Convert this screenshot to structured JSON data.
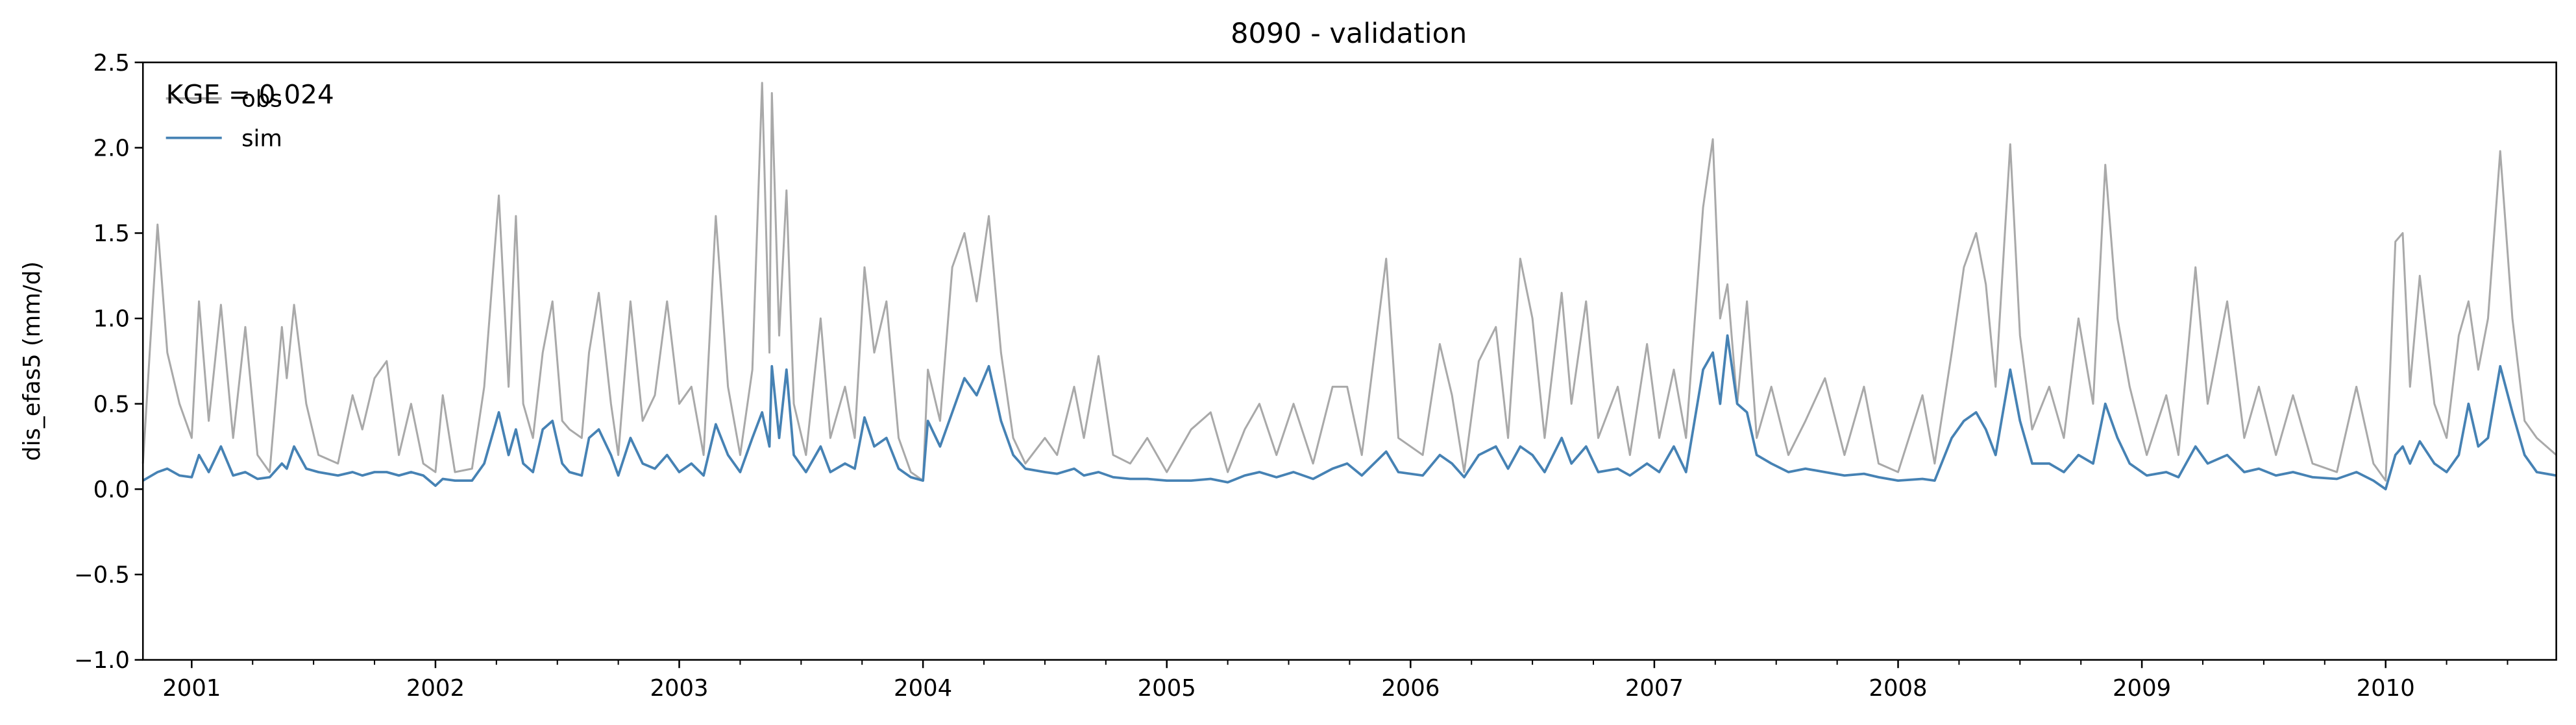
{
  "chart_data": {
    "type": "line",
    "title": "8090 - validation",
    "y_label": "dis_efas5 (mm/d)",
    "annotation": "KGE = 0.024",
    "legend": "upper left",
    "grid": false,
    "xlim": [
      2000.8,
      2010.7
    ],
    "xticks": [
      2001,
      2002,
      2003,
      2004,
      2005,
      2006,
      2007,
      2008,
      2009,
      2010
    ],
    "ylim": [
      -1.0,
      2.5
    ],
    "yticks": [
      {
        "value": -1.0,
        "label": "−1.0"
      },
      {
        "value": -0.5,
        "label": "−0.5"
      },
      {
        "value": 0.0,
        "label": "0.0"
      },
      {
        "value": 0.5,
        "label": "0.5"
      },
      {
        "value": 1.0,
        "label": "1.0"
      },
      {
        "value": 1.5,
        "label": "1.5"
      },
      {
        "value": 2.0,
        "label": "2.0"
      },
      {
        "value": 2.5,
        "label": "2.5"
      }
    ],
    "x": [
      2000.8,
      2000.86,
      2000.9,
      2000.95,
      2001.0,
      2001.03,
      2001.07,
      2001.12,
      2001.17,
      2001.22,
      2001.27,
      2001.32,
      2001.37,
      2001.39,
      2001.42,
      2001.47,
      2001.52,
      2001.6,
      2001.66,
      2001.7,
      2001.75,
      2001.8,
      2001.85,
      2001.9,
      2001.95,
      2002.0,
      2002.03,
      2002.08,
      2002.15,
      2002.2,
      2002.26,
      2002.3,
      2002.33,
      2002.36,
      2002.4,
      2002.44,
      2002.48,
      2002.52,
      2002.55,
      2002.6,
      2002.63,
      2002.67,
      2002.72,
      2002.75,
      2002.8,
      2002.85,
      2002.9,
      2002.95,
      2003.0,
      2003.05,
      2003.1,
      2003.15,
      2003.2,
      2003.25,
      2003.3,
      2003.34,
      2003.37,
      2003.38,
      2003.41,
      2003.44,
      2003.47,
      2003.52,
      2003.58,
      2003.62,
      2003.68,
      2003.72,
      2003.76,
      2003.8,
      2003.85,
      2003.9,
      2003.95,
      2004.0,
      2004.02,
      2004.07,
      2004.12,
      2004.17,
      2004.22,
      2004.27,
      2004.32,
      2004.37,
      2004.42,
      2004.5,
      2004.55,
      2004.62,
      2004.66,
      2004.72,
      2004.78,
      2004.85,
      2004.92,
      2005.0,
      2005.1,
      2005.18,
      2005.25,
      2005.32,
      2005.38,
      2005.45,
      2005.52,
      2005.6,
      2005.68,
      2005.74,
      2005.8,
      2005.9,
      2005.95,
      2006.05,
      2006.12,
      2006.17,
      2006.22,
      2006.28,
      2006.35,
      2006.4,
      2006.45,
      2006.5,
      2006.55,
      2006.62,
      2006.66,
      2006.72,
      2006.77,
      2006.85,
      2006.9,
      2006.97,
      2007.02,
      2007.08,
      2007.13,
      2007.2,
      2007.24,
      2007.27,
      2007.3,
      2007.34,
      2007.38,
      2007.42,
      2007.48,
      2007.55,
      2007.62,
      2007.7,
      2007.78,
      2007.86,
      2007.92,
      2008.0,
      2008.1,
      2008.15,
      2008.22,
      2008.27,
      2008.32,
      2008.36,
      2008.4,
      2008.46,
      2008.5,
      2008.55,
      2008.62,
      2008.68,
      2008.74,
      2008.8,
      2008.85,
      2008.9,
      2008.95,
      2009.02,
      2009.1,
      2009.15,
      2009.22,
      2009.27,
      2009.35,
      2009.42,
      2009.48,
      2009.55,
      2009.62,
      2009.7,
      2009.8,
      2009.88,
      2009.95,
      2010.0,
      2010.04,
      2010.07,
      2010.1,
      2010.14,
      2010.2,
      2010.25,
      2010.3,
      2010.34,
      2010.38,
      2010.42,
      2010.47,
      2010.52,
      2010.57,
      2010.62,
      2010.7
    ],
    "series": [
      {
        "name": "obs",
        "color": "#a9a9a9",
        "values": [
          0.15,
          1.55,
          0.8,
          0.5,
          0.3,
          1.1,
          0.4,
          1.08,
          0.3,
          0.95,
          0.2,
          0.1,
          0.95,
          0.65,
          1.08,
          0.5,
          0.2,
          0.15,
          0.55,
          0.35,
          0.65,
          0.75,
          0.2,
          0.5,
          0.15,
          0.1,
          0.55,
          0.1,
          0.12,
          0.6,
          1.72,
          0.6,
          1.6,
          0.5,
          0.3,
          0.8,
          1.1,
          0.4,
          0.35,
          0.3,
          0.8,
          1.15,
          0.5,
          0.2,
          1.1,
          0.4,
          0.55,
          1.1,
          0.5,
          0.6,
          0.2,
          1.6,
          0.6,
          0.2,
          0.7,
          2.38,
          0.8,
          2.32,
          0.9,
          1.75,
          0.5,
          0.2,
          1.0,
          0.3,
          0.6,
          0.3,
          1.3,
          0.8,
          1.1,
          0.3,
          0.1,
          0.05,
          0.7,
          0.4,
          1.3,
          1.5,
          1.1,
          1.6,
          0.8,
          0.3,
          0.15,
          0.3,
          0.2,
          0.6,
          0.3,
          0.78,
          0.2,
          0.15,
          0.3,
          0.1,
          0.35,
          0.45,
          0.1,
          0.35,
          0.5,
          0.2,
          0.5,
          0.15,
          0.6,
          0.6,
          0.2,
          1.35,
          0.3,
          0.2,
          0.85,
          0.55,
          0.1,
          0.75,
          0.95,
          0.3,
          1.35,
          1.0,
          0.3,
          1.15,
          0.5,
          1.1,
          0.3,
          0.6,
          0.2,
          0.85,
          0.3,
          0.7,
          0.3,
          1.65,
          2.05,
          1.0,
          1.2,
          0.5,
          1.1,
          0.3,
          0.6,
          0.2,
          0.4,
          0.65,
          0.2,
          0.6,
          0.15,
          0.1,
          0.55,
          0.15,
          0.8,
          1.3,
          1.5,
          1.2,
          0.6,
          2.02,
          0.9,
          0.35,
          0.6,
          0.3,
          1.0,
          0.5,
          1.9,
          1.0,
          0.6,
          0.2,
          0.55,
          0.2,
          1.3,
          0.5,
          1.1,
          0.3,
          0.6,
          0.2,
          0.55,
          0.15,
          0.1,
          0.6,
          0.15,
          0.05,
          1.45,
          1.5,
          0.6,
          1.25,
          0.5,
          0.3,
          0.9,
          1.1,
          0.7,
          1.0,
          1.98,
          1.0,
          0.4,
          0.3,
          0.2
        ]
      },
      {
        "name": "sim",
        "color": "#4682b4",
        "values": [
          0.05,
          0.1,
          0.12,
          0.08,
          0.07,
          0.2,
          0.1,
          0.25,
          0.08,
          0.1,
          0.06,
          0.07,
          0.15,
          0.12,
          0.25,
          0.12,
          0.1,
          0.08,
          0.1,
          0.08,
          0.1,
          0.1,
          0.08,
          0.1,
          0.08,
          0.02,
          0.06,
          0.05,
          0.05,
          0.15,
          0.45,
          0.2,
          0.35,
          0.15,
          0.1,
          0.35,
          0.4,
          0.15,
          0.1,
          0.08,
          0.3,
          0.35,
          0.2,
          0.08,
          0.3,
          0.15,
          0.12,
          0.2,
          0.1,
          0.15,
          0.08,
          0.38,
          0.2,
          0.1,
          0.3,
          0.45,
          0.25,
          0.72,
          0.3,
          0.7,
          0.2,
          0.1,
          0.25,
          0.1,
          0.15,
          0.12,
          0.42,
          0.25,
          0.3,
          0.12,
          0.07,
          0.05,
          0.4,
          0.25,
          0.45,
          0.65,
          0.55,
          0.72,
          0.4,
          0.2,
          0.12,
          0.1,
          0.09,
          0.12,
          0.08,
          0.1,
          0.07,
          0.06,
          0.06,
          0.05,
          0.05,
          0.06,
          0.04,
          0.08,
          0.1,
          0.07,
          0.1,
          0.06,
          0.12,
          0.15,
          0.08,
          0.22,
          0.1,
          0.08,
          0.2,
          0.15,
          0.07,
          0.2,
          0.25,
          0.12,
          0.25,
          0.2,
          0.1,
          0.3,
          0.15,
          0.25,
          0.1,
          0.12,
          0.08,
          0.15,
          0.1,
          0.25,
          0.1,
          0.7,
          0.8,
          0.5,
          0.9,
          0.5,
          0.45,
          0.2,
          0.15,
          0.1,
          0.12,
          0.1,
          0.08,
          0.09,
          0.07,
          0.05,
          0.06,
          0.05,
          0.3,
          0.4,
          0.45,
          0.35,
          0.2,
          0.7,
          0.4,
          0.15,
          0.15,
          0.1,
          0.2,
          0.15,
          0.5,
          0.3,
          0.15,
          0.08,
          0.1,
          0.07,
          0.25,
          0.15,
          0.2,
          0.1,
          0.12,
          0.08,
          0.1,
          0.07,
          0.06,
          0.1,
          0.05,
          0.0,
          0.2,
          0.25,
          0.15,
          0.28,
          0.15,
          0.1,
          0.2,
          0.5,
          0.25,
          0.3,
          0.72,
          0.45,
          0.2,
          0.1,
          0.08
        ]
      }
    ]
  }
}
